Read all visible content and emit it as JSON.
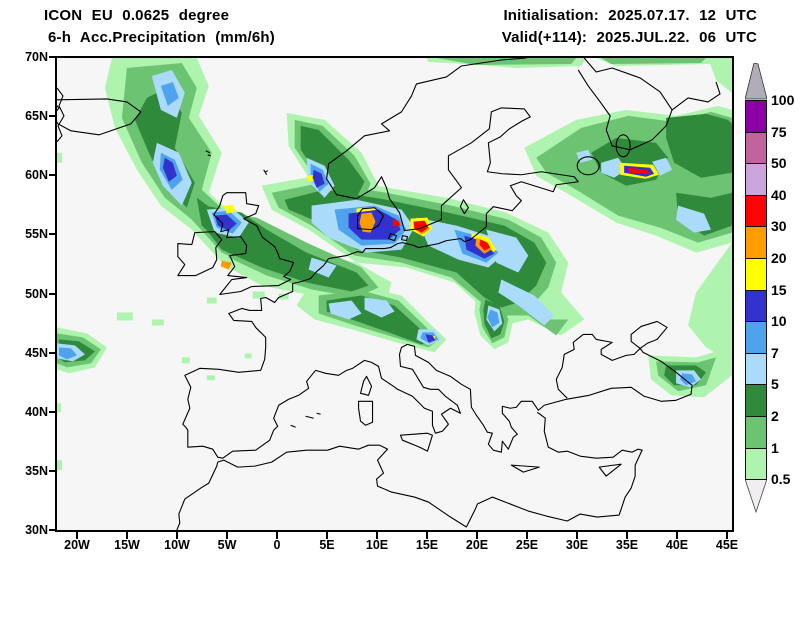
{
  "header": {
    "model_line": "ICON EU 0.0625 degree",
    "product_line": "6-h Acc.Precipitation (mm/6h)",
    "init_line": "Initialisation: 2025.07.17. 12 UTC",
    "valid_line": "Valid(+114): 2025.JUL.22. 06 UTC"
  },
  "axes": {
    "lat_labels": [
      "70N",
      "65N",
      "60N",
      "55N",
      "50N",
      "45N",
      "40N",
      "35N",
      "30N"
    ],
    "lon_labels": [
      "20W",
      "15W",
      "10W",
      "5W",
      "0",
      "5E",
      "10E",
      "15E",
      "20E",
      "25E",
      "30E",
      "35E",
      "40E",
      "45E"
    ]
  },
  "colorbar": {
    "unit": "mm/6h",
    "levels": [
      "100",
      "75",
      "50",
      "40",
      "30",
      "20",
      "15",
      "10",
      "7",
      "5",
      "2",
      "1",
      "0.5"
    ],
    "block_colors": [
      "#8b00a5",
      "#c1639c",
      "#cba6dd",
      "#fa0505",
      "#ff9c00",
      "#ffff00",
      "#3232cd",
      "#4fa2ee",
      "#abdbfb",
      "#2f8b3b",
      "#6cc472",
      "#aef4af"
    ],
    "arrow_top_color": "#b2abb8",
    "arrow_bottom_color": "#f0eef0"
  },
  "palette": {
    "light_green": "#aef4af",
    "mid_green": "#6cc472",
    "dark_green": "#2f8b3b",
    "light_blue": "#abdbfb",
    "mid_blue": "#4fa2ee",
    "dark_blue": "#3232cd",
    "yellow": "#ffff00",
    "orange": "#ff9c00",
    "red": "#fa0505",
    "purple": "#8b00a5",
    "mauve": "#c1639c",
    "lilac": "#cba6dd"
  }
}
